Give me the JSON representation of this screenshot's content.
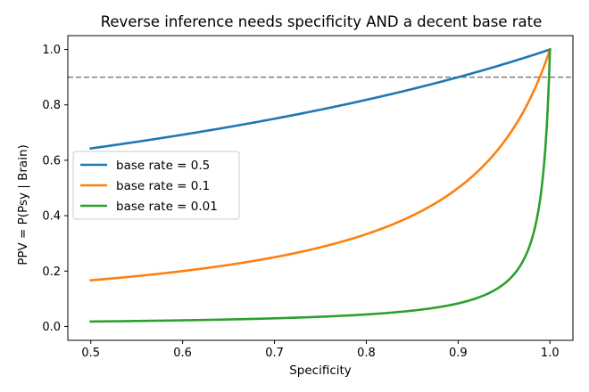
{
  "chart_data": {
    "type": "line",
    "title": "Reverse inference needs specificity AND a decent base rate",
    "xlabel": "Specificity",
    "ylabel": "PPV = P(Psy | Brain)",
    "xlim": [
      0.475,
      1.025
    ],
    "ylim": [
      -0.05,
      1.05
    ],
    "xticks": [
      0.5,
      0.6,
      0.7,
      0.8,
      0.9,
      1.0
    ],
    "xtick_labels": [
      "0.5",
      "0.6",
      "0.7",
      "0.8",
      "0.9",
      "1.0"
    ],
    "yticks": [
      0.0,
      0.2,
      0.4,
      0.6,
      0.8,
      1.0
    ],
    "ytick_labels": [
      "0.0",
      "0.2",
      "0.4",
      "0.6",
      "0.8",
      "1.0"
    ],
    "grid": false,
    "legend_position": "center-left",
    "sensitivity": 0.9,
    "x_range": [
      0.5,
      1.0
    ],
    "series": [
      {
        "name": "base rate = 0.5",
        "base_rate": 0.5,
        "color": "#1f77b4"
      },
      {
        "name": "base rate = 0.1",
        "base_rate": 0.1,
        "color": "#ff7f0e"
      },
      {
        "name": "base rate = 0.01",
        "base_rate": 0.01,
        "color": "#2ca02c"
      }
    ],
    "reference_line": {
      "orientation": "horizontal",
      "y": 0.9,
      "style": "dashed",
      "color": "#7f7f7f"
    }
  }
}
